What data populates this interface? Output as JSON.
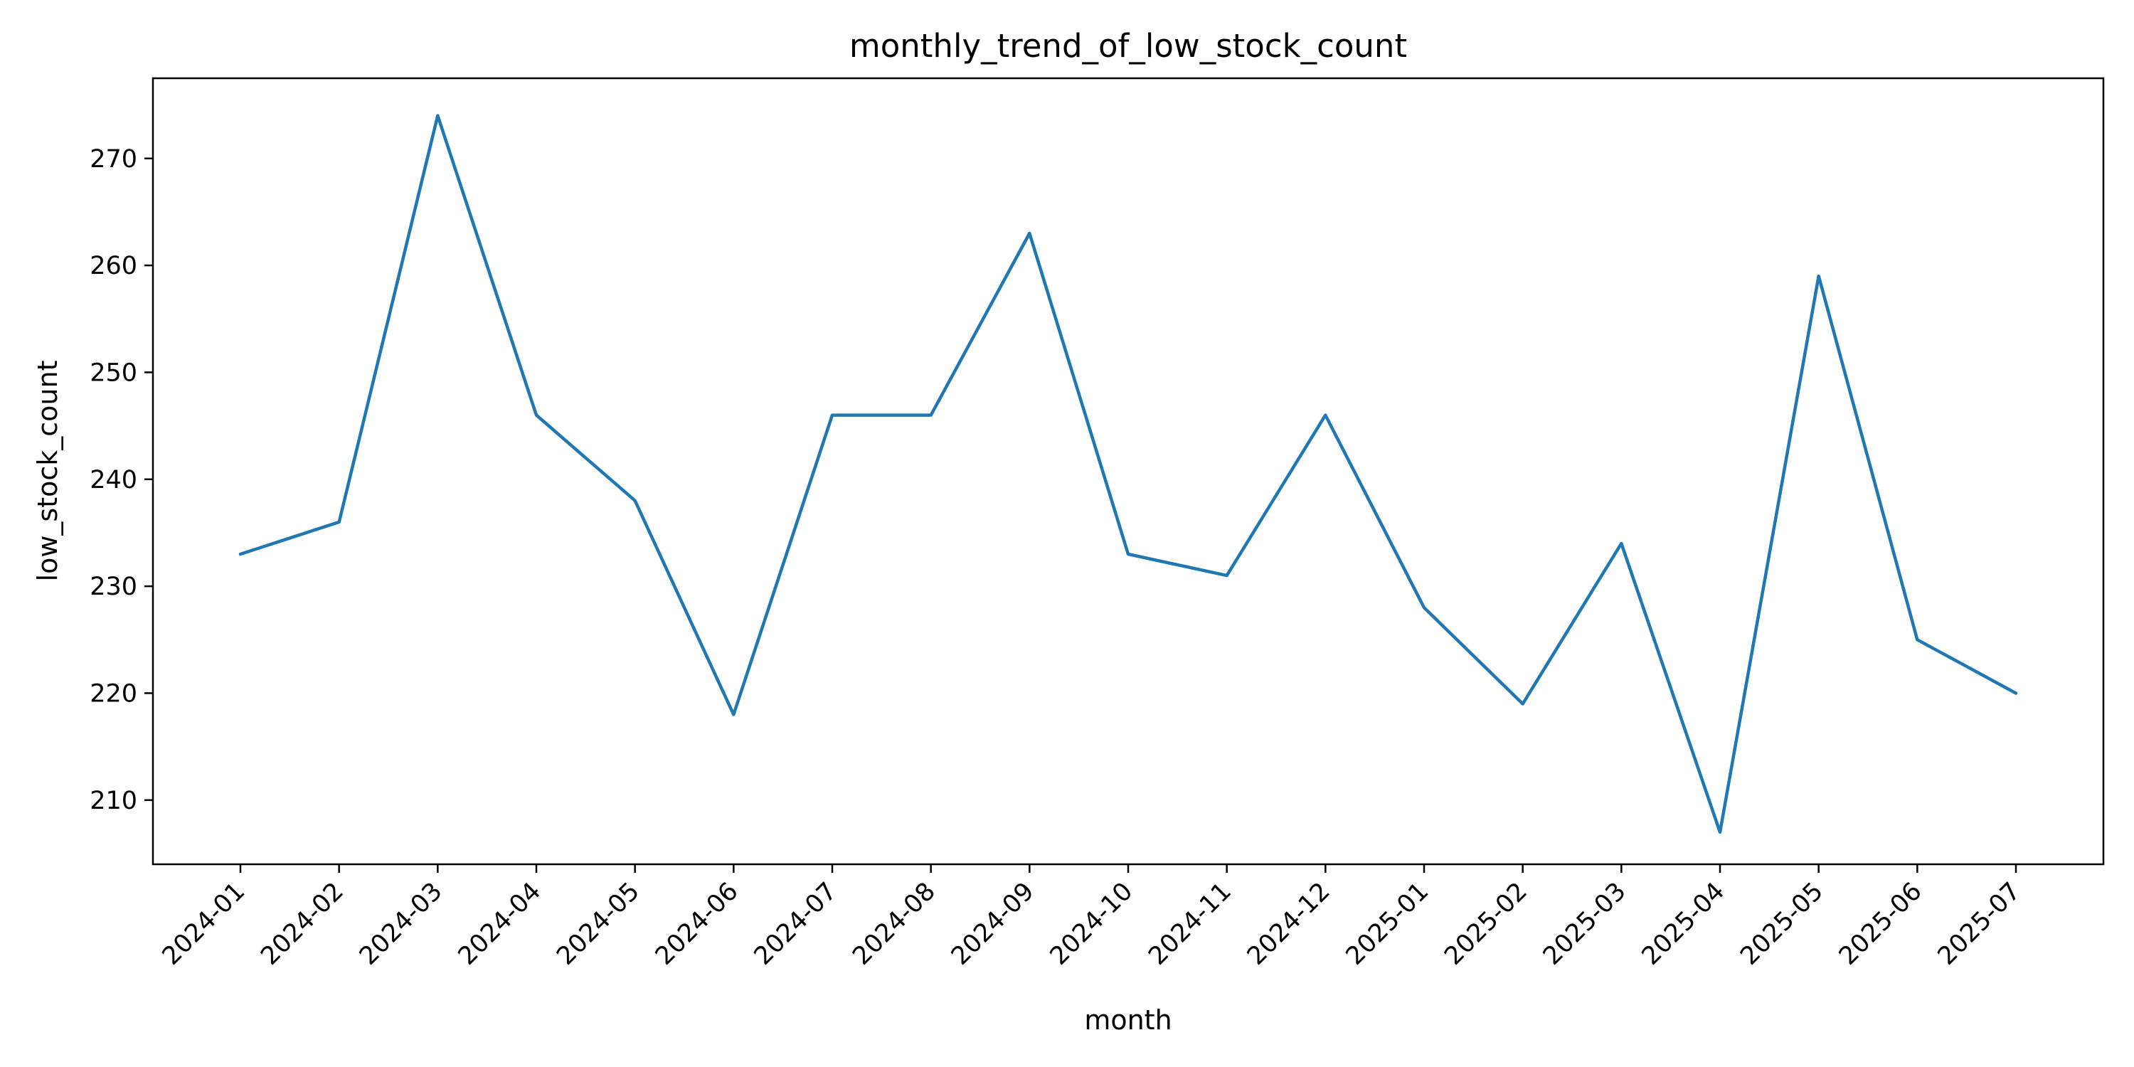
{
  "chart_data": {
    "type": "line",
    "title": "monthly_trend_of_low_stock_count",
    "xlabel": "month",
    "ylabel": "low_stock_count",
    "categories": [
      "2024-01",
      "2024-02",
      "2024-03",
      "2024-04",
      "2024-05",
      "2024-06",
      "2024-07",
      "2024-08",
      "2024-09",
      "2024-10",
      "2024-11",
      "2024-12",
      "2025-01",
      "2025-02",
      "2025-03",
      "2025-04",
      "2025-05",
      "2025-06",
      "2025-07"
    ],
    "series": [
      {
        "values": [
          233,
          236,
          274,
          246,
          238,
          218,
          246,
          246,
          263,
          233,
          231,
          246,
          228,
          219,
          234,
          207,
          259,
          225,
          220
        ],
        "color": "#1f77b4"
      }
    ],
    "yticks": [
      210,
      220,
      230,
      240,
      250,
      260,
      270
    ],
    "ylim": [
      204,
      277.5
    ],
    "grid": false,
    "legend": "none"
  }
}
